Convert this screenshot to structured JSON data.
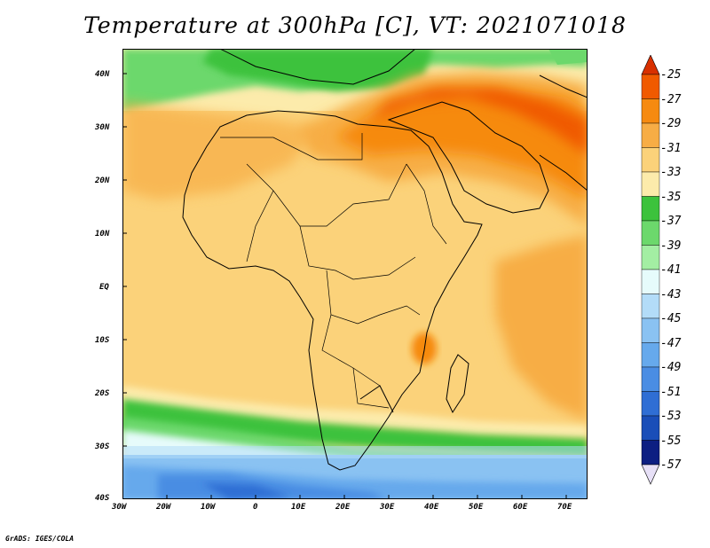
{
  "title": "Temperature at 300hPa [C], VT: 2021071018",
  "credit": "GrADS: IGES/COLA",
  "lat_labels": [
    "40N",
    "30N",
    "20N",
    "10N",
    "EQ",
    "10S",
    "20S",
    "30S",
    "40S"
  ],
  "lon_labels": [
    "30W",
    "20W",
    "10W",
    "0",
    "10E",
    "20E",
    "30E",
    "40E",
    "50E",
    "60E",
    "70E"
  ],
  "colorbar": {
    "labels": [
      "-25",
      "-27",
      "-29",
      "-31",
      "-33",
      "-35",
      "-37",
      "-39",
      "-41",
      "-43",
      "-45",
      "-47",
      "-49",
      "-51",
      "-53",
      "-55",
      "-57"
    ],
    "colors": [
      "#d83000",
      "#f05a00",
      "#f68a10",
      "#f7ad45",
      "#fbd27a",
      "#fcebab",
      "#3cc23c",
      "#6cd86c",
      "#a3eea3",
      "#e6fbfb",
      "#b3dcf8",
      "#8ac2f2",
      "#66a9ec",
      "#4a8de3",
      "#2f6ed4",
      "#1a4eb8",
      "#0d1f82",
      "#e7e0f7"
    ]
  },
  "map": {
    "region": "Africa",
    "field": "Temperature at 300hPa",
    "units": "C",
    "valid_time": "2021071018",
    "lon_range": [
      "30W",
      "75E"
    ],
    "lat_range": [
      "40S",
      "45N"
    ]
  }
}
